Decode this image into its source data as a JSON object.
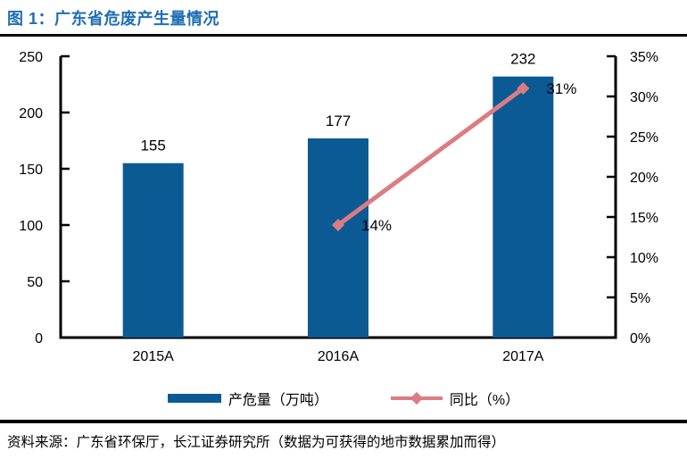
{
  "header": {
    "title": "图 1：广东省危废产生量情况",
    "title_color": "#1F6EB4"
  },
  "chart_data": {
    "type": "bar",
    "subtype": "bar+line-combo",
    "categories": [
      "2015A",
      "2016A",
      "2017A"
    ],
    "series": [
      {
        "name": "产危量（万吨）",
        "type": "bar",
        "axis": "left",
        "color": "#0B5A94",
        "values": [
          155,
          177,
          232
        ],
        "labels": [
          "155",
          "177",
          "232"
        ]
      },
      {
        "name": "同比（%）",
        "type": "line",
        "axis": "right",
        "color": "#DC7C82",
        "marker": "diamond",
        "values": [
          null,
          14,
          31
        ],
        "labels": [
          null,
          "14%",
          "31%"
        ]
      }
    ],
    "left_axis": {
      "min": 0,
      "max": 250,
      "step": 50,
      "tick_labels": [
        "0",
        "50",
        "100",
        "150",
        "200",
        "250"
      ]
    },
    "right_axis": {
      "min": 0,
      "max": 35,
      "step": 5,
      "tick_labels": [
        "0%",
        "5%",
        "10%",
        "15%",
        "20%",
        "25%",
        "30%",
        "35%"
      ]
    },
    "grid": false,
    "legend_position": "bottom",
    "axis_color": "#000000"
  },
  "footer": {
    "source": "资料来源：广东省环保厅，长江证券研究所（数据为可获得的地市数据累加而得）"
  }
}
